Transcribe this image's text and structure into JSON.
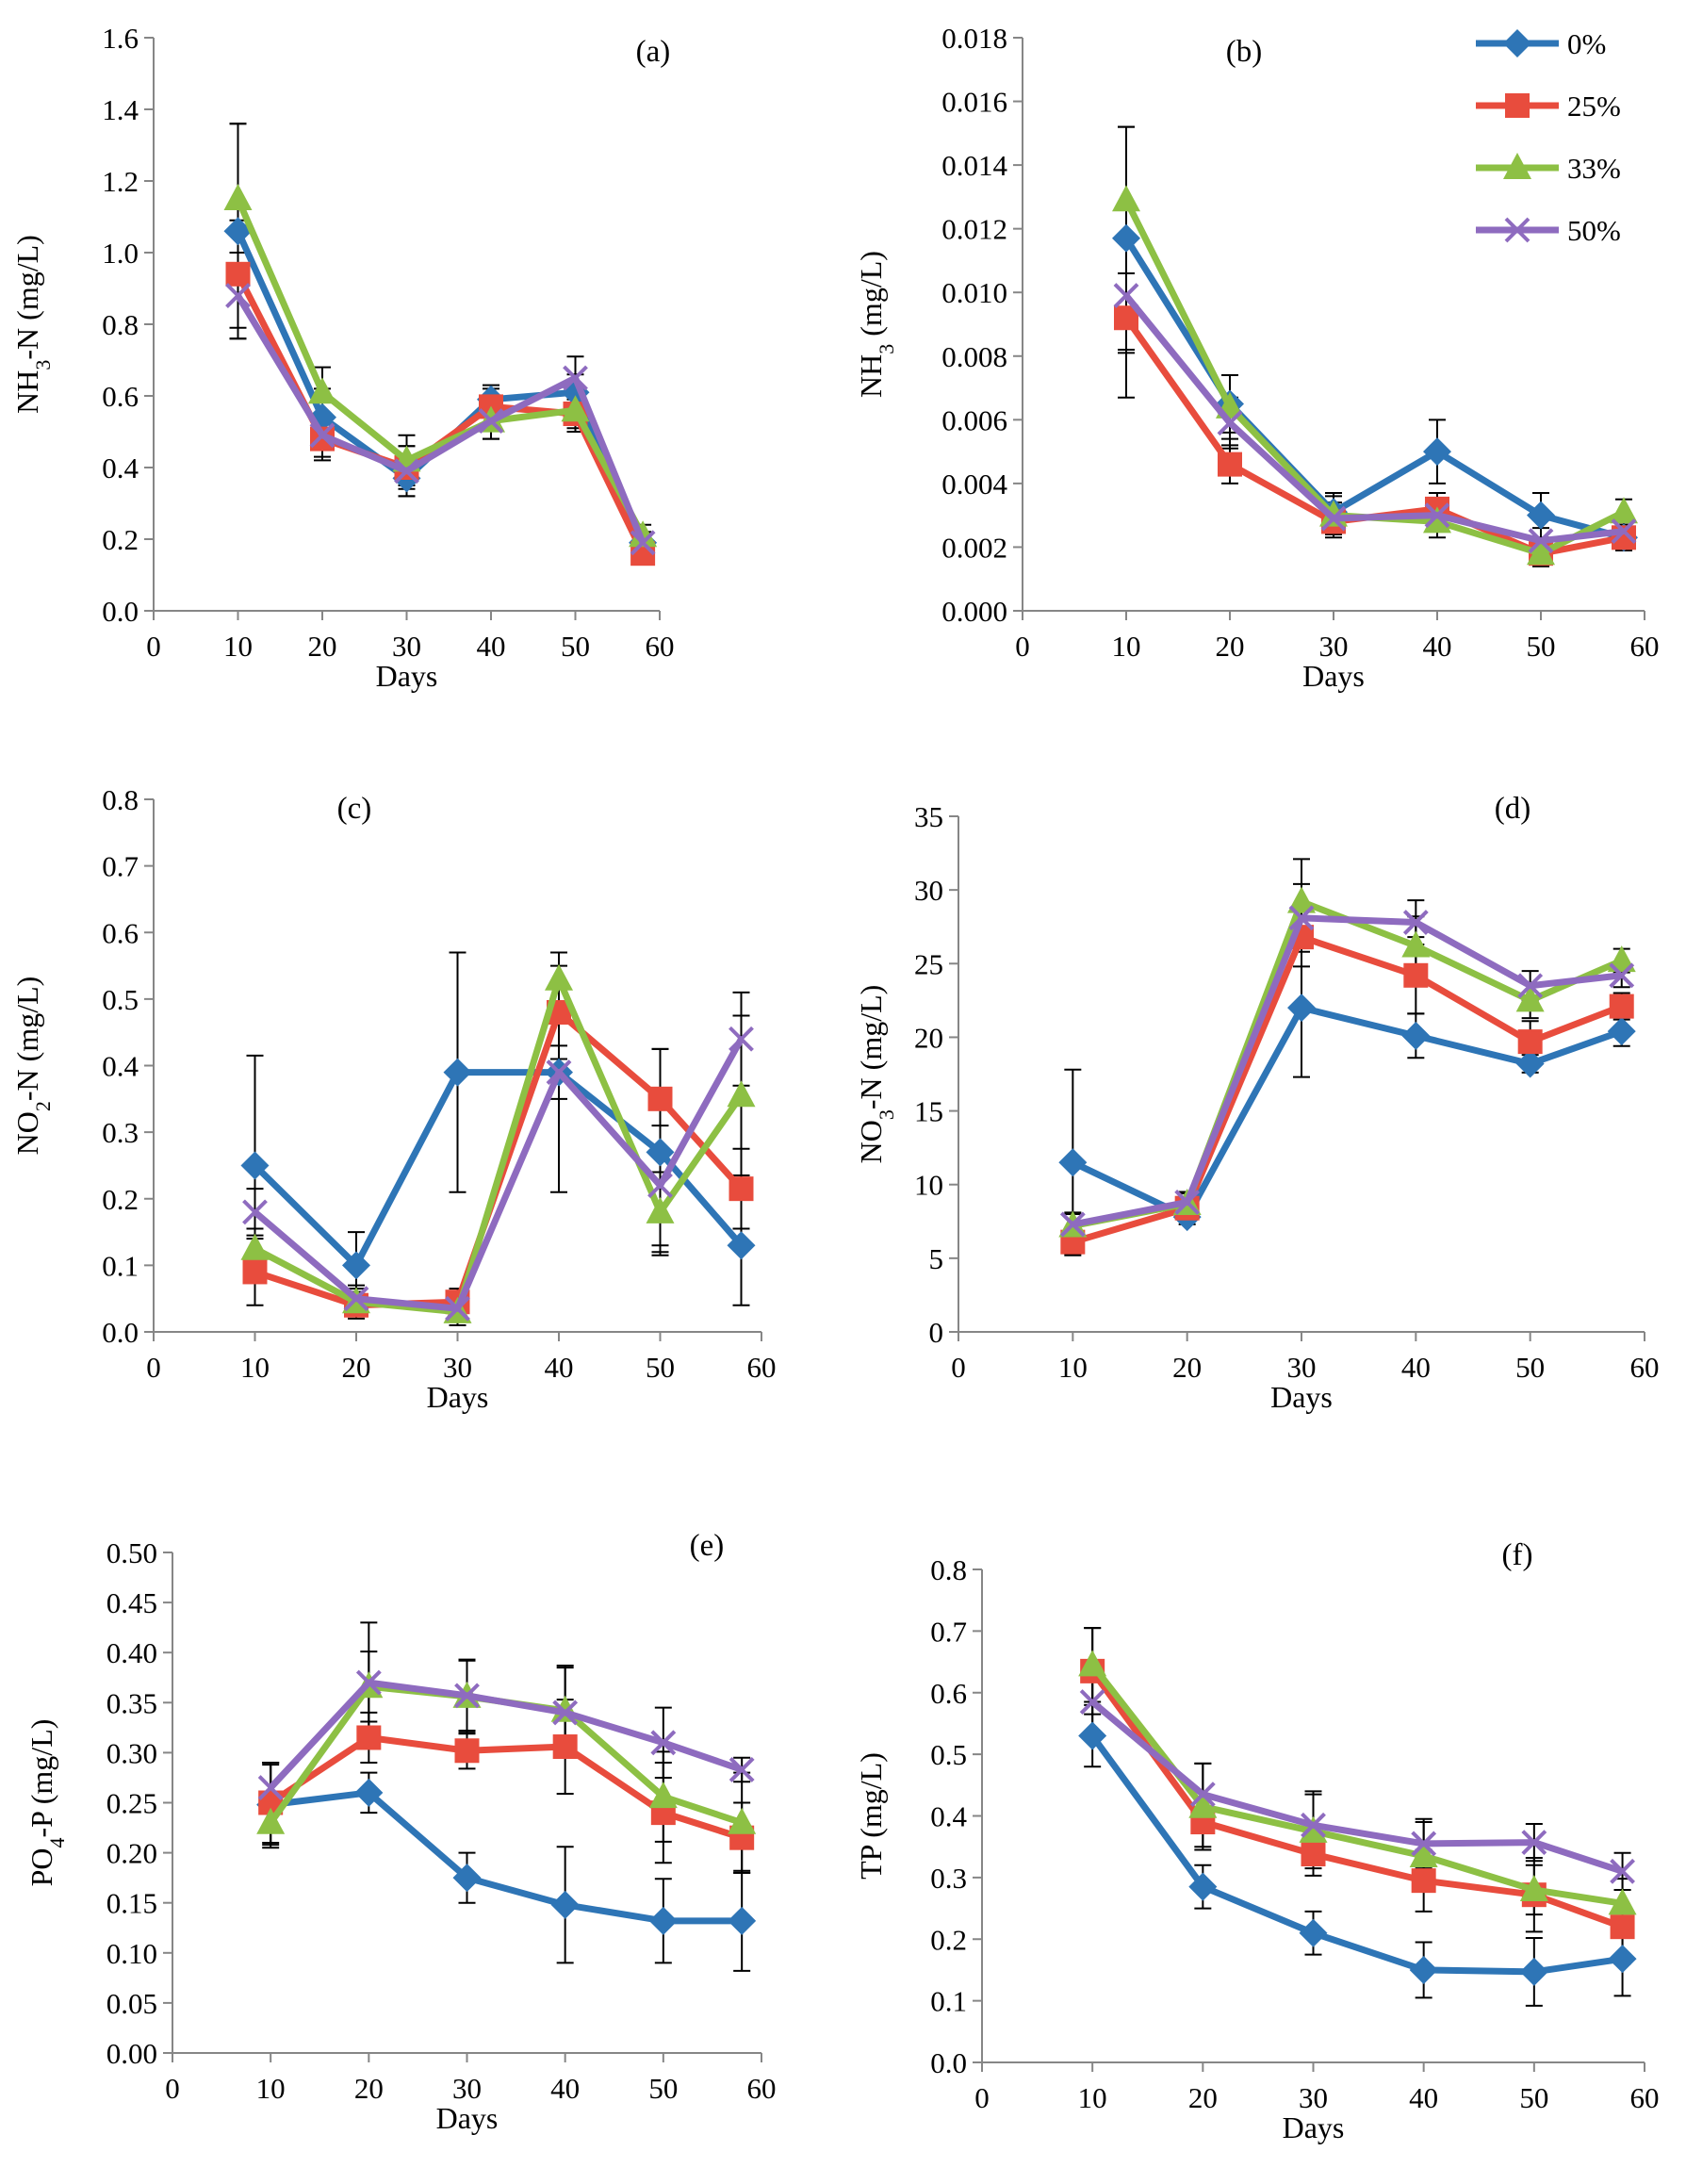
{
  "chart_data": [
    {
      "type": "line",
      "panel_label": "(a)",
      "xlabel": "Days",
      "ylabel": {
        "main": "NH",
        "sub": "3",
        "rest": "-N (mg/L)"
      },
      "xlim": [
        0,
        60
      ],
      "xticks": [
        "0",
        "10",
        "20",
        "30",
        "40",
        "50",
        "60"
      ],
      "ylim": [
        0,
        1.6
      ],
      "yticks": [
        "0.0",
        "0.2",
        "0.4",
        "0.6",
        "0.8",
        "1.0",
        "1.2",
        "1.4",
        "1.6"
      ],
      "x": [
        10,
        20,
        30,
        40,
        50,
        58
      ],
      "series": [
        {
          "name": "0%",
          "values": [
            1.06,
            0.54,
            0.37,
            0.59,
            0.61,
            0.19
          ],
          "errors": [
            0.3,
            0.08,
            0.05,
            0.04,
            0.05,
            0.03
          ]
        },
        {
          "name": "25%",
          "values": [
            0.94,
            0.48,
            0.4,
            0.57,
            0.55,
            0.16
          ],
          "errors": [
            0.15,
            0.06,
            0.06,
            0.05,
            0.05,
            0.03
          ]
        },
        {
          "name": "33%",
          "values": [
            1.15,
            0.61,
            0.42,
            0.53,
            0.56,
            0.21
          ],
          "errors": [
            0.21,
            0.07,
            0.07,
            0.05,
            0.05,
            0.03
          ]
        },
        {
          "name": "50%",
          "values": [
            0.88,
            0.49,
            0.39,
            0.53,
            0.65,
            0.19
          ],
          "errors": [
            0.12,
            0.06,
            0.07,
            0.05,
            0.06,
            0.03
          ]
        }
      ]
    },
    {
      "type": "line",
      "panel_label": "(b)",
      "xlabel": "Days",
      "ylabel": {
        "main": "NH",
        "sub": "3",
        "rest": " (mg/L)"
      },
      "xlim": [
        0,
        60
      ],
      "xticks": [
        "0",
        "10",
        "20",
        "30",
        "40",
        "50",
        "60"
      ],
      "ylim": [
        0,
        0.018
      ],
      "yticks": [
        "0.000",
        "0.002",
        "0.004",
        "0.006",
        "0.008",
        "0.010",
        "0.012",
        "0.014",
        "0.016",
        "0.018"
      ],
      "x": [
        10,
        20,
        30,
        40,
        50,
        58
      ],
      "series": [
        {
          "name": "0%",
          "values": [
            0.0117,
            0.0065,
            0.0031,
            0.005,
            0.003,
            0.0023
          ],
          "errors": [
            0.0035,
            0.0009,
            0.0006,
            0.001,
            0.0007,
            0.0004
          ]
        },
        {
          "name": "25%",
          "values": [
            0.0092,
            0.0046,
            0.0028,
            0.0032,
            0.0018,
            0.0023
          ],
          "errors": [
            0.0025,
            0.0006,
            0.0005,
            0.0005,
            0.0004,
            0.0004
          ]
        },
        {
          "name": "33%",
          "values": [
            0.0129,
            0.0064,
            0.003,
            0.0028,
            0.0018,
            0.0031
          ],
          "errors": [
            0.0023,
            0.001,
            0.0006,
            0.0005,
            0.0004,
            0.0004
          ]
        },
        {
          "name": "50%",
          "values": [
            0.0099,
            0.0059,
            0.0029,
            0.003,
            0.0022,
            0.0025
          ],
          "errors": [
            0.0018,
            0.0008,
            0.0005,
            0.0005,
            0.0004,
            0.0004
          ]
        }
      ]
    },
    {
      "type": "line",
      "panel_label": "(c)",
      "xlabel": "Days",
      "ylabel": {
        "main": "NO",
        "sub": "2",
        "rest": "-N (mg/L)"
      },
      "xlim": [
        0,
        60
      ],
      "xticks": [
        "0",
        "10",
        "20",
        "30",
        "40",
        "50",
        "60"
      ],
      "ylim": [
        0,
        0.8
      ],
      "yticks": [
        "0.0",
        "0.1",
        "0.2",
        "0.3",
        "0.4",
        "0.5",
        "0.6",
        "0.7",
        "0.8"
      ],
      "x": [
        10,
        20,
        30,
        40,
        50,
        58
      ],
      "series": [
        {
          "name": "0%",
          "values": [
            0.25,
            0.1,
            0.39,
            0.39,
            0.27,
            0.13
          ],
          "errors": [
            0.165,
            0.05,
            0.18,
            0.04,
            0.155,
            0.09
          ]
        },
        {
          "name": "25%",
          "values": [
            0.09,
            0.04,
            0.045,
            0.48,
            0.35,
            0.215
          ],
          "errors": [
            0.05,
            0.02,
            0.02,
            0.07,
            0.075,
            0.06
          ]
        },
        {
          "name": "33%",
          "values": [
            0.125,
            0.045,
            0.03,
            0.53,
            0.18,
            0.355
          ],
          "errors": [
            0.03,
            0.02,
            0.02,
            0.04,
            0.06,
            0.12
          ]
        },
        {
          "name": "50%",
          "values": [
            0.18,
            0.05,
            0.035,
            0.39,
            0.22,
            0.44
          ],
          "errors": [
            0.035,
            0.02,
            0.02,
            0.18,
            0.09,
            0.07
          ]
        }
      ]
    },
    {
      "type": "line",
      "panel_label": "(d)",
      "xlabel": "Days",
      "ylabel": {
        "main": "NO",
        "sub": "3",
        "rest": "-N (mg/L)"
      },
      "xlim": [
        0,
        60
      ],
      "xticks": [
        "0",
        "10",
        "20",
        "30",
        "40",
        "50",
        "60"
      ],
      "ylim": [
        0,
        35
      ],
      "yticks": [
        "0",
        "5",
        "10",
        "15",
        "20",
        "25",
        "30",
        "35"
      ],
      "x": [
        10,
        20,
        30,
        40,
        50,
        58
      ],
      "series": [
        {
          "name": "0%",
          "values": [
            11.5,
            7.8,
            22.0,
            20.1,
            18.2,
            20.4
          ],
          "errors": [
            6.3,
            0.5,
            4.7,
            1.5,
            0.6,
            1.0
          ]
        },
        {
          "name": "25%",
          "values": [
            6.1,
            8.4,
            26.8,
            24.2,
            19.7,
            22.1
          ],
          "errors": [
            0.8,
            0.6,
            2.0,
            2.6,
            1.4,
            0.9
          ]
        },
        {
          "name": "33%",
          "values": [
            7.2,
            8.7,
            29.2,
            26.2,
            22.5,
            25.2
          ],
          "errors": [
            0.8,
            0.7,
            2.9,
            2.0,
            1.2,
            0.8
          ]
        },
        {
          "name": "50%",
          "values": [
            7.3,
            8.8,
            28.1,
            27.8,
            23.5,
            24.2
          ],
          "errors": [
            0.8,
            0.7,
            2.3,
            1.5,
            1.0,
            0.8
          ]
        }
      ]
    },
    {
      "type": "line",
      "panel_label": "(e)",
      "xlabel": "Days",
      "ylabel": {
        "main": "PO",
        "sub": "4",
        "rest": "-P (mg/L)"
      },
      "xlim": [
        0,
        60
      ],
      "xticks": [
        "0",
        "10",
        "20",
        "30",
        "40",
        "50",
        "60"
      ],
      "ylim": [
        0,
        0.5
      ],
      "yticks": [
        "0.00",
        "0.05",
        "0.10",
        "0.15",
        "0.20",
        "0.25",
        "0.30",
        "0.35",
        "0.40",
        "0.45",
        "0.50"
      ],
      "x": [
        10,
        20,
        30,
        40,
        50,
        58
      ],
      "series": [
        {
          "name": "0%",
          "values": [
            0.248,
            0.26,
            0.175,
            0.148,
            0.132,
            0.132
          ],
          "errors": [
            0.04,
            0.02,
            0.025,
            0.058,
            0.042,
            0.05
          ]
        },
        {
          "name": "25%",
          "values": [
            0.25,
            0.315,
            0.302,
            0.306,
            0.24,
            0.215
          ],
          "errors": [
            0.04,
            0.025,
            0.018,
            0.047,
            0.05,
            0.035
          ]
        },
        {
          "name": "33%",
          "values": [
            0.23,
            0.366,
            0.356,
            0.342,
            0.256,
            0.23
          ],
          "errors": [
            0.025,
            0.035,
            0.037,
            0.045,
            0.045,
            0.05
          ]
        },
        {
          "name": "50%",
          "values": [
            0.265,
            0.37,
            0.357,
            0.34,
            0.31,
            0.283
          ],
          "errors": [
            0.025,
            0.06,
            0.035,
            0.045,
            0.035,
            0.012
          ]
        }
      ]
    },
    {
      "type": "line",
      "panel_label": "(f)",
      "xlabel": "Days",
      "ylabel": {
        "main": "TP (mg/L)",
        "sub": "",
        "rest": ""
      },
      "xlim": [
        0,
        60
      ],
      "xticks": [
        "0",
        "10",
        "20",
        "30",
        "40",
        "50",
        "60"
      ],
      "ylim": [
        0,
        0.8
      ],
      "yticks": [
        "0.0",
        "0.1",
        "0.2",
        "0.3",
        "0.4",
        "0.5",
        "0.6",
        "0.7",
        "0.8"
      ],
      "x": [
        10,
        20,
        30,
        40,
        50,
        58
      ],
      "series": [
        {
          "name": "0%",
          "values": [
            0.53,
            0.285,
            0.21,
            0.15,
            0.147,
            0.168
          ],
          "errors": [
            0.05,
            0.035,
            0.035,
            0.045,
            0.055,
            0.06
          ]
        },
        {
          "name": "25%",
          "values": [
            0.635,
            0.39,
            0.338,
            0.295,
            0.272,
            0.22
          ],
          "errors": [
            0.07,
            0.04,
            0.035,
            0.05,
            0.06,
            0.06
          ]
        },
        {
          "name": "33%",
          "values": [
            0.645,
            0.415,
            0.375,
            0.335,
            0.28,
            0.258
          ],
          "errors": [
            0.06,
            0.07,
            0.06,
            0.055,
            0.04,
            0.04
          ]
        },
        {
          "name": "50%",
          "values": [
            0.585,
            0.435,
            0.385,
            0.355,
            0.357,
            0.31
          ],
          "errors": [
            0.05,
            0.05,
            0.055,
            0.04,
            0.03,
            0.03
          ]
        }
      ]
    }
  ],
  "legend": {
    "entries": [
      {
        "name": "0%",
        "color": "#2E75B6",
        "marker": "diamond"
      },
      {
        "name": "25%",
        "color": "#E84C3D",
        "marker": "square"
      },
      {
        "name": "33%",
        "color": "#8DC044",
        "marker": "triangle"
      },
      {
        "name": "50%",
        "color": "#8E6BBF",
        "marker": "cross"
      }
    ]
  }
}
